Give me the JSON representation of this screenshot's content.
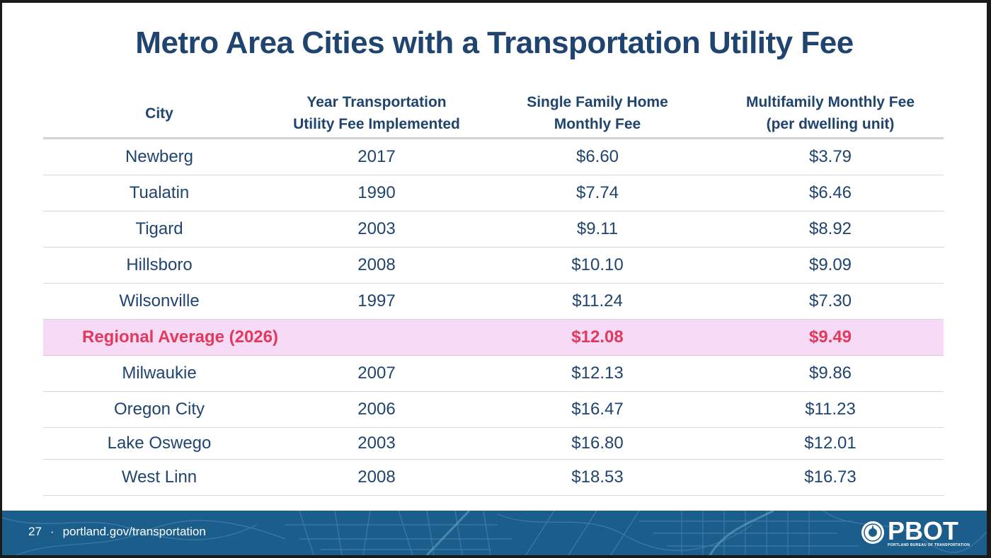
{
  "slide": {
    "title": "Metro Area Cities with a Transportation Utility Fee"
  },
  "table": {
    "headers": [
      [
        "City"
      ],
      [
        "Year Transportation",
        "Utility Fee Implemented"
      ],
      [
        "Single Family Home",
        "Monthly Fee"
      ],
      [
        "Multifamily Monthly Fee",
        "(per dwelling unit)"
      ]
    ],
    "rows": [
      {
        "city": "Newberg",
        "year": "2017",
        "single": "$6.60",
        "multi": "$3.79"
      },
      {
        "city": "Tualatin",
        "year": "1990",
        "single": "$7.74",
        "multi": "$6.46"
      },
      {
        "city": "Tigard",
        "year": "2003",
        "single": "$9.11",
        "multi": "$8.92"
      },
      {
        "city": "Hillsboro",
        "year": "2008",
        "single": "$10.10",
        "multi": "$9.09"
      },
      {
        "city": "Wilsonville",
        "year": "1997",
        "single": "$11.24",
        "multi": "$7.30"
      },
      {
        "city": "Milwaukie",
        "year": "2007",
        "single": "$12.13",
        "multi": "$9.86"
      },
      {
        "city": "Oregon City",
        "year": "2006",
        "single": "$16.47",
        "multi": "$11.23"
      },
      {
        "city": "Lake Oswego",
        "year": "2003",
        "single": "$16.80",
        "multi": "$12.01"
      },
      {
        "city": "West Linn",
        "year": "2008",
        "single": "$18.53",
        "multi": "$16.73"
      }
    ],
    "average": {
      "label": "Regional Average (2026)",
      "single": "$12.08",
      "multi": "$9.49"
    }
  },
  "footer": {
    "page_number": "27",
    "separator": "·",
    "url": "portland.gov/transportation",
    "logo_text": "PBOT",
    "logo_subtext": "PORTLAND BUREAU OF TRANSPORTATION"
  },
  "colors": {
    "title": "#1f4470",
    "highlight_text": "#e03a5c",
    "highlight_bg": "#f6daf6",
    "footer_bg": "#1b5e8c"
  }
}
